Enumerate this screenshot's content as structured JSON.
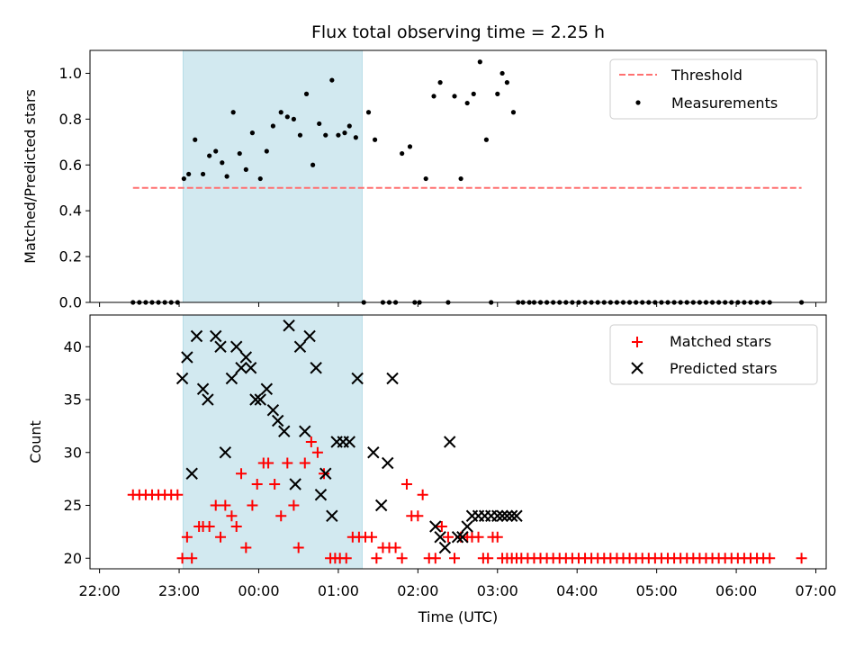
{
  "chart_data": {
    "title": "Flux total observing time = 2.25 h",
    "xlabel": "Time (UTC)",
    "x_units": "hours since 22:00 UTC",
    "xlim": [
      -0.12,
      9.13
    ],
    "x_ticks": [
      {
        "value": 0,
        "label": "22:00"
      },
      {
        "value": 1,
        "label": "23:00"
      },
      {
        "value": 2,
        "label": "00:00"
      },
      {
        "value": 3,
        "label": "01:00"
      },
      {
        "value": 4,
        "label": "02:00"
      },
      {
        "value": 5,
        "label": "03:00"
      },
      {
        "value": 6,
        "label": "04:00"
      },
      {
        "value": 7,
        "label": "05:00"
      },
      {
        "value": 8,
        "label": "06:00"
      },
      {
        "value": 9,
        "label": "07:00"
      }
    ],
    "shaded_interval": [
      1.05,
      3.3
    ],
    "colors": {
      "shade": "#d2e9f0",
      "shade_edge": "#b8dde8",
      "threshold": "#ff7070",
      "measurement": "#000000",
      "matched": "#ff0000",
      "predicted": "#000000"
    },
    "top": {
      "type": "scatter",
      "ylabel": "Matched/Predicted stars",
      "ylim": [
        0,
        1.1
      ],
      "y_ticks": [
        "0.0",
        "0.2",
        "0.4",
        "0.6",
        "0.8",
        "1.0"
      ],
      "legend": [
        "Threshold",
        "Measurements"
      ],
      "threshold": {
        "name": "Threshold",
        "value": 0.5,
        "x_range": [
          0.42,
          8.82
        ]
      },
      "series": [
        {
          "name": "Measurements",
          "x": [
            0.42,
            0.5,
            0.58,
            0.66,
            0.74,
            0.82,
            0.9,
            0.98,
            1.06,
            1.12,
            1.2,
            1.3,
            1.38,
            1.46,
            1.54,
            1.6,
            1.68,
            1.76,
            1.84,
            1.92,
            2.02,
            2.1,
            2.18,
            2.28,
            2.36,
            2.44,
            2.52,
            2.6,
            2.68,
            2.76,
            2.84,
            2.92,
            3.0,
            3.08,
            3.14,
            3.22,
            3.32,
            3.38,
            3.46,
            3.56,
            3.64,
            3.72,
            3.8,
            3.9,
            3.96,
            4.02,
            4.1,
            4.2,
            4.28,
            4.38,
            4.46,
            4.54,
            4.62,
            4.7,
            4.78,
            4.86,
            4.92,
            5.0,
            5.06,
            5.12,
            5.2,
            5.26,
            5.32,
            5.4,
            5.46,
            5.54,
            5.62,
            5.7,
            5.78,
            5.86,
            5.94,
            6.02,
            6.1,
            6.18,
            6.26,
            6.34,
            6.42,
            6.5,
            6.58,
            6.66,
            6.74,
            6.82,
            6.9,
            6.98,
            7.06,
            7.14,
            7.22,
            7.3,
            7.38,
            7.46,
            7.54,
            7.62,
            7.7,
            7.78,
            7.86,
            7.94,
            8.02,
            8.1,
            8.18,
            8.26,
            8.34,
            8.42,
            8.82
          ],
          "y": [
            0,
            0,
            0,
            0,
            0,
            0,
            0,
            0,
            0.54,
            0.56,
            0.71,
            0.56,
            0.64,
            0.66,
            0.61,
            0.55,
            0.83,
            0.65,
            0.58,
            0.74,
            0.54,
            0.66,
            0.77,
            0.83,
            0.81,
            0.8,
            0.73,
            0.91,
            0.6,
            0.78,
            0.73,
            0.97,
            0.73,
            0.74,
            0.77,
            0.72,
            0,
            0.83,
            0.71,
            0,
            0,
            0,
            0.65,
            0.68,
            0,
            0,
            0.54,
            0.9,
            0.96,
            0,
            0.9,
            0.54,
            0.87,
            0.91,
            1.05,
            0.71,
            0,
            0.91,
            1.0,
            0.96,
            0.83,
            0,
            0,
            0,
            0,
            0,
            0,
            0,
            0,
            0,
            0,
            0,
            0,
            0,
            0,
            0,
            0,
            0,
            0,
            0,
            0,
            0,
            0,
            0,
            0,
            0,
            0,
            0,
            0,
            0,
            0,
            0,
            0,
            0,
            0,
            0,
            0,
            0,
            0,
            0,
            0,
            0,
            0
          ]
        }
      ]
    },
    "bottom": {
      "type": "scatter",
      "ylabel": "Count",
      "ylim": [
        19,
        43
      ],
      "y_ticks": [
        "20",
        "25",
        "30",
        "35",
        "40"
      ],
      "legend": [
        "Matched stars",
        "Predicted stars"
      ],
      "series": [
        {
          "name": "Matched stars",
          "marker": "+",
          "x": [
            0.42,
            0.5,
            0.58,
            0.66,
            0.74,
            0.82,
            0.9,
            0.98,
            1.04,
            1.1,
            1.16,
            1.25,
            1.3,
            1.38,
            1.46,
            1.52,
            1.58,
            1.66,
            1.72,
            1.78,
            1.84,
            1.92,
            1.98,
            2.06,
            2.12,
            2.2,
            2.28,
            2.36,
            2.44,
            2.5,
            2.58,
            2.66,
            2.74,
            2.82,
            2.9,
            2.96,
            3.02,
            3.1,
            3.18,
            3.26,
            3.34,
            3.42,
            3.48,
            3.56,
            3.64,
            3.72,
            3.8,
            3.86,
            3.92,
            4.0,
            4.06,
            4.14,
            4.22,
            4.3,
            4.38,
            4.46,
            4.54,
            4.62,
            4.68,
            4.76,
            4.82,
            4.88,
            4.94,
            5.0,
            5.06,
            5.12,
            5.18,
            5.24,
            5.3,
            5.38,
            5.46,
            5.54,
            5.62,
            5.7,
            5.78,
            5.86,
            5.94,
            6.02,
            6.1,
            6.18,
            6.26,
            6.34,
            6.42,
            6.5,
            6.58,
            6.66,
            6.74,
            6.82,
            6.9,
            6.98,
            7.06,
            7.14,
            7.22,
            7.3,
            7.38,
            7.46,
            7.54,
            7.62,
            7.7,
            7.78,
            7.86,
            7.94,
            8.02,
            8.1,
            8.18,
            8.26,
            8.34,
            8.42,
            8.82
          ],
          "y": [
            26,
            26,
            26,
            26,
            26,
            26,
            26,
            26,
            20,
            22,
            20,
            23,
            23,
            23,
            25,
            22,
            25,
            24,
            23,
            28,
            21,
            25,
            27,
            29,
            29,
            27,
            24,
            29,
            25,
            21,
            29,
            31,
            30,
            28,
            20,
            20,
            20,
            20,
            22,
            22,
            22,
            22,
            20,
            21,
            21,
            21,
            20,
            27,
            24,
            24,
            26,
            20,
            20,
            23,
            22,
            20,
            22,
            22,
            22,
            22,
            20,
            20,
            22,
            22,
            20,
            20,
            20,
            20,
            20,
            20,
            20,
            20,
            20,
            20,
            20,
            20,
            20,
            20,
            20,
            20,
            20,
            20,
            20,
            20,
            20,
            20,
            20,
            20,
            20,
            20,
            20,
            20,
            20,
            20,
            20,
            20,
            20,
            20,
            20,
            20,
            20,
            20,
            20,
            20,
            20,
            20,
            20,
            20,
            20
          ]
        },
        {
          "name": "Predicted stars",
          "marker": "x",
          "x": [
            1.04,
            1.1,
            1.16,
            1.22,
            1.3,
            1.36,
            1.46,
            1.52,
            1.58,
            1.66,
            1.72,
            1.78,
            1.84,
            1.9,
            1.96,
            2.02,
            2.1,
            2.18,
            2.24,
            2.32,
            2.38,
            2.46,
            2.52,
            2.58,
            2.64,
            2.72,
            2.78,
            2.84,
            2.92,
            2.98,
            3.06,
            3.14,
            3.24,
            3.44,
            3.54,
            3.62,
            3.68,
            4.22,
            4.28,
            4.34,
            4.4,
            4.5,
            4.56,
            4.62,
            4.68,
            4.76,
            4.84,
            4.92,
            5.0,
            5.06,
            5.12,
            5.18,
            5.24
          ],
          "y": [
            37,
            39,
            28,
            41,
            36,
            35,
            41,
            40,
            30,
            37,
            40,
            38,
            39,
            38,
            35,
            35,
            36,
            34,
            33,
            32,
            42,
            27,
            40,
            32,
            41,
            38,
            26,
            28,
            24,
            31,
            31,
            31,
            37,
            30,
            25,
            29,
            37,
            23,
            22,
            21,
            31,
            22,
            22,
            23,
            24,
            24,
            24,
            24,
            24,
            24,
            24,
            24,
            24
          ]
        }
      ]
    }
  }
}
